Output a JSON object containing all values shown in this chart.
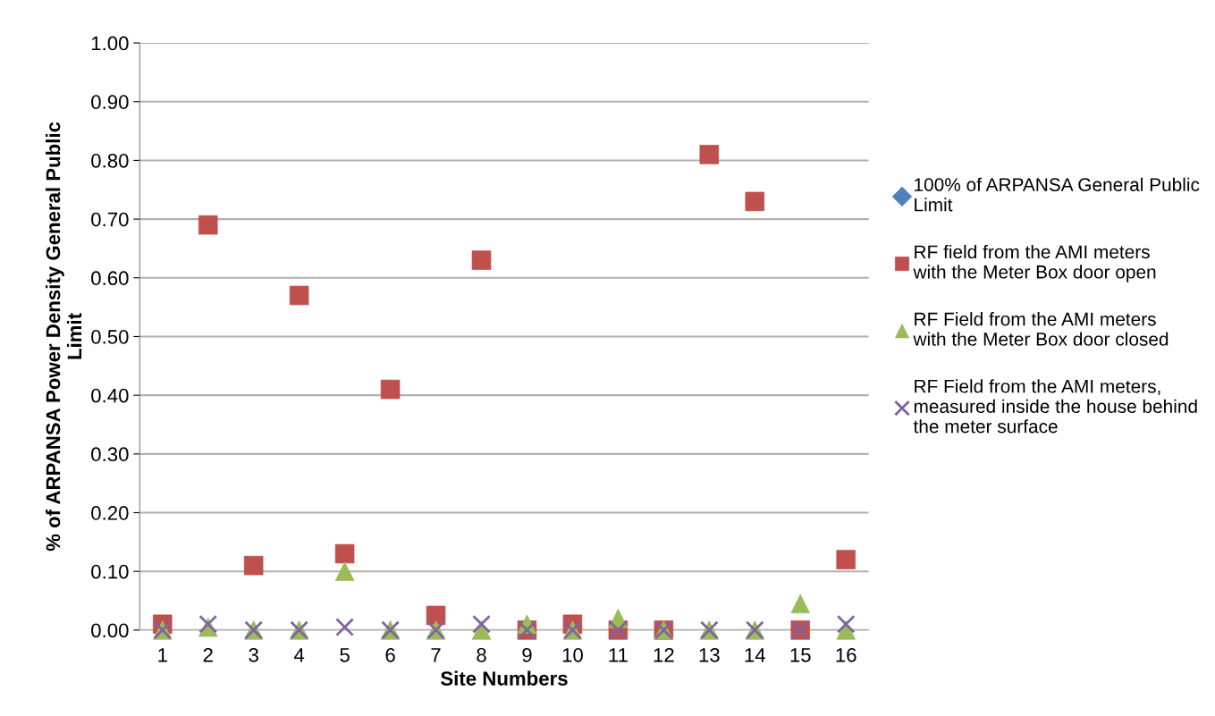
{
  "chart_data": {
    "type": "scatter",
    "xlabel": "Site Numbers",
    "ylabel": "% of ARPANSA Power Density General Public Limit",
    "categories": [
      "1",
      "2",
      "3",
      "4",
      "5",
      "6",
      "7",
      "8",
      "9",
      "10",
      "11",
      "12",
      "13",
      "14",
      "15",
      "16"
    ],
    "series": [
      {
        "name": "100% of ARPANSA General Public Limit",
        "color": "#4f81bd",
        "marker": "diamond",
        "values": [
          null,
          null,
          null,
          null,
          null,
          null,
          null,
          null,
          null,
          null,
          null,
          null,
          null,
          null,
          null,
          null
        ]
      },
      {
        "name": "RF field from the AMI meters with the Meter Box door open",
        "color": "#c0504d",
        "marker": "square",
        "values": [
          0.01,
          0.69,
          0.11,
          0.57,
          0.13,
          0.41,
          0.025,
          0.63,
          0.0,
          0.01,
          0.0,
          0.0,
          0.81,
          0.73,
          0.0,
          0.12
        ]
      },
      {
        "name": "RF Field from the AMI meters with the Meter Box door closed",
        "color": "#9bbb59",
        "marker": "triangle",
        "values": [
          0.0,
          0.005,
          0.0,
          0.0,
          0.1,
          0.0,
          0.0,
          0.0,
          0.01,
          0.0,
          0.02,
          0.0,
          0.0,
          0.0,
          0.045,
          0.0
        ]
      },
      {
        "name": "RF Field from the AMI meters, measured inside the house behind the meter surface",
        "color": "#8064a2",
        "marker": "cross",
        "values": [
          0.0,
          0.01,
          0.0,
          0.0,
          0.005,
          0.0,
          0.0,
          0.01,
          0.0,
          0.0,
          0.0,
          0.0,
          0.0,
          0.0,
          0.0,
          0.01
        ]
      }
    ],
    "ylim": [
      0,
      1.0
    ],
    "yticks": [
      {
        "value": 0,
        "label": "0.00"
      },
      {
        "value": 0.1,
        "label": "0.10"
      },
      {
        "value": 0.2,
        "label": "0.20"
      },
      {
        "value": 0.3,
        "label": "0.30"
      },
      {
        "value": 0.4,
        "label": "0.40"
      },
      {
        "value": 0.5,
        "label": "0.50"
      },
      {
        "value": 0.6,
        "label": "0.60"
      },
      {
        "value": 0.7,
        "label": "0.70"
      },
      {
        "value": 0.8,
        "label": "0.80"
      },
      {
        "value": 0.9,
        "label": "0.90"
      },
      {
        "value": 1.0,
        "label": "1.00"
      }
    ],
    "grid": "y",
    "legend": "right"
  }
}
